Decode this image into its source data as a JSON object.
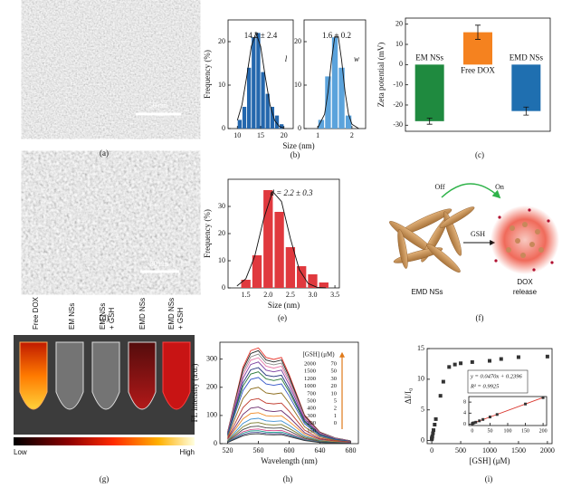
{
  "chart_data": [
    {
      "type": "histogram",
      "ylabel": "Frequency (%)",
      "xlabel": "Size (nm)",
      "color": "#2467ad",
      "bins": [
        10,
        11,
        12,
        13,
        14,
        15,
        16,
        17,
        18,
        19,
        20
      ],
      "values": [
        2,
        5,
        14,
        21,
        22,
        13,
        8,
        5,
        3,
        1
      ],
      "xlim": [
        8,
        22
      ],
      "xticks": [
        10,
        15,
        20
      ],
      "ylim": [
        0,
        25
      ],
      "yticks": [
        0,
        10,
        20
      ],
      "fit": {
        "x": [
          10,
          11,
          12,
          13,
          14,
          15,
          16,
          17,
          18,
          19,
          20
        ],
        "y": [
          1.9,
          5.5,
          11.9,
          18.9,
          22,
          18.9,
          11.9,
          5.5,
          1.9,
          0.5,
          0.1
        ]
      },
      "annotations": [
        "14.2 ± 2.4",
        "l"
      ]
    },
    {
      "type": "histogram",
      "color": "#5ba3dc",
      "bins": [
        1.0,
        1.2,
        1.4,
        1.6,
        1.8,
        2.0
      ],
      "values": [
        2,
        12,
        21,
        14,
        3
      ],
      "xlim": [
        0.6,
        2.4
      ],
      "xticks": [
        1,
        2
      ],
      "ylim": [
        0,
        25
      ],
      "yticks": [
        0,
        10,
        20
      ],
      "fit": {
        "x": [
          1.0,
          1.2,
          1.3,
          1.4,
          1.5,
          1.6,
          1.7,
          1.8,
          1.9,
          2.0,
          2.2
        ],
        "y": [
          0.2,
          3.3,
          8.4,
          15.6,
          21.2,
          21.2,
          15.6,
          8.4,
          3.3,
          1.0,
          0
        ]
      },
      "annotations": [
        "1.6 ± 0.2",
        "w"
      ]
    },
    {
      "type": "bar",
      "ylabel": "Zeta potential (mV)",
      "categories": [
        "EM NSs",
        "Free DOX",
        "EMD NSs"
      ],
      "values": [
        -28,
        16,
        -23
      ],
      "errors": [
        1.5,
        3.5,
        2
      ],
      "colors": [
        "#1f8a3f",
        "#f5821f",
        "#1f6fb0"
      ],
      "ylim": [
        -33,
        23
      ],
      "yticks": [
        -30,
        -20,
        -10,
        0,
        10,
        20
      ]
    },
    {
      "type": "histogram",
      "ylabel": "Frequency (%)",
      "xlabel": "Size (nm)",
      "color": "#e0393e",
      "bins": [
        1.375,
        1.625,
        1.875,
        2.125,
        2.375,
        2.625,
        2.875,
        3.125,
        3.375
      ],
      "values": [
        3,
        12,
        36,
        28,
        15,
        8,
        5,
        2
      ],
      "xlim": [
        1.1,
        3.6
      ],
      "xticks": [
        1.5,
        {
          "value": 2,
          "label": "2.0"
        },
        2.5,
        {
          "value": 3,
          "label": "3.0"
        },
        3.5
      ],
      "ylim": [
        0,
        40
      ],
      "yticks": [
        0,
        10,
        20,
        30
      ],
      "fit": {
        "x": [
          1.3,
          1.5,
          1.7,
          1.9,
          2.1,
          2.3,
          2.5,
          2.7,
          2.9,
          3.1,
          3.3
        ],
        "y": [
          0.7,
          3.4,
          11.7,
          25.4,
          35.5,
          31.8,
          18.2,
          6.7,
          1.6,
          0.2,
          0
        ]
      },
      "annotations": [
        "d = 2.2 ± 0.3"
      ]
    },
    {
      "type": "line",
      "xlabel": "Wavelength (nm)",
      "ylabel": "FL intensity (a.u.)",
      "legend_title": "[GSH] (μM)",
      "x": [
        520,
        540,
        550,
        560,
        570,
        580,
        590,
        600,
        620,
        640,
        660,
        680
      ],
      "xlim": [
        510,
        690
      ],
      "xticks": [
        520,
        560,
        600,
        640,
        680
      ],
      "ylim": [
        0,
        360
      ],
      "yticks": [
        0,
        100,
        200,
        300
      ],
      "series": [
        {
          "name": "2000",
          "color": "#e8342a",
          "values": [
            41,
            272,
            330,
            340,
            306,
            299,
            306,
            245,
            102,
            41,
            20,
            10
          ]
        },
        {
          "name": "1500",
          "color": "#222222",
          "values": [
            40,
            264,
            320,
            330,
            297,
            290,
            297,
            238,
            99,
            40,
            20,
            10
          ]
        },
        {
          "name": "1200",
          "color": "#8a8a8a",
          "values": [
            38,
            254,
            308,
            318,
            286,
            280,
            286,
            229,
            95,
            38,
            19,
            10
          ]
        },
        {
          "name": "1000",
          "color": "#e879a8",
          "values": [
            37,
            244,
            296,
            305,
            275,
            268,
            275,
            220,
            92,
            37,
            18,
            9
          ]
        },
        {
          "name": "700",
          "color": "#7b3fa0",
          "values": [
            35,
            232,
            281,
            290,
            261,
            255,
            261,
            209,
            87,
            35,
            17,
            9
          ]
        },
        {
          "name": "500",
          "color": "#1f2f7a",
          "values": [
            32,
            216,
            262,
            270,
            243,
            238,
            243,
            194,
            81,
            32,
            16,
            8
          ]
        },
        {
          "name": "400",
          "color": "#2b7a3a",
          "values": [
            31,
            204,
            247,
            255,
            230,
            224,
            230,
            184,
            77,
            31,
            15,
            8
          ]
        },
        {
          "name": "300",
          "color": "#3456c8",
          "values": [
            28,
            188,
            228,
            235,
            212,
            207,
            212,
            169,
            71,
            28,
            14,
            7
          ]
        },
        {
          "name": "200",
          "color": "#8b6b1a",
          "values": [
            24,
            160,
            194,
            200,
            180,
            176,
            180,
            144,
            60,
            24,
            12,
            6
          ]
        },
        {
          "name": "150",
          "color": "#c0392b",
          "values": [
            19,
            128,
            155,
            160,
            144,
            141,
            144,
            115,
            48,
            19,
            10,
            5
          ]
        },
        {
          "name": "70",
          "color": "#6b2a6b",
          "values": [
            16,
            104,
            126,
            130,
            117,
            114,
            117,
            94,
            39,
            16,
            8,
            4
          ]
        },
        {
          "name": "50",
          "color": "#f08a24",
          "values": [
            13,
            88,
            107,
            110,
            99,
            97,
            99,
            79,
            33,
            13,
            7,
            3
          ]
        },
        {
          "name": "30",
          "color": "#3d8fd1",
          "values": [
            11,
            72,
            87,
            90,
            81,
            79,
            81,
            65,
            27,
            11,
            5,
            3
          ]
        },
        {
          "name": "20",
          "color": "#7a7a2a",
          "values": [
            9,
            60,
            73,
            75,
            68,
            66,
            68,
            54,
            23,
            9,
            5,
            2
          ]
        },
        {
          "name": "10",
          "color": "#444444",
          "values": [
            7,
            50,
            60,
            62,
            56,
            55,
            56,
            45,
            19,
            7,
            4,
            2
          ]
        },
        {
          "name": "5",
          "color": "#d94a8c",
          "values": [
            6,
            42,
            50,
            52,
            47,
            46,
            47,
            37,
            16,
            6,
            3,
            2
          ]
        },
        {
          "name": "2",
          "color": "#1a9f8f",
          "values": [
            6,
            37,
            45,
            46,
            41,
            40,
            41,
            33,
            14,
            6,
            3,
            1
          ]
        },
        {
          "name": "1",
          "color": "#555599",
          "values": [
            5,
            32,
            39,
            40,
            36,
            35,
            36,
            29,
            12,
            5,
            2,
            1
          ]
        },
        {
          "name": "0",
          "color": "#333333",
          "values": [
            4,
            28,
            34,
            35,
            32,
            31,
            32,
            25,
            11,
            4,
            2,
            1
          ]
        }
      ]
    },
    {
      "type": "scatter",
      "xlabel": "[GSH] (μM)",
      "ylabel": "ΔI/I₀",
      "color": "#333333",
      "x": [
        0,
        1,
        2,
        5,
        10,
        20,
        30,
        50,
        70,
        150,
        200,
        300,
        400,
        500,
        700,
        1000,
        1200,
        1500,
        2000
      ],
      "values": [
        0.2,
        0.3,
        0.4,
        0.5,
        0.7,
        1.2,
        1.7,
        2.6,
        3.5,
        7.3,
        9.6,
        12.0,
        12.4,
        12.6,
        12.8,
        13.0,
        13.3,
        13.6,
        13.7
      ],
      "xlim": [
        -80,
        2080
      ],
      "xticks": [
        0,
        500,
        1000,
        1500,
        2000
      ],
      "ylim": [
        -0.5,
        15
      ],
      "yticks": [
        0,
        5,
        10,
        15
      ]
    },
    {
      "type": "scatter",
      "inset": true,
      "color": "#333333",
      "fit_color": "#d9342b",
      "x": [
        0,
        1,
        2,
        5,
        10,
        20,
        30,
        50,
        70,
        150,
        200
      ],
      "values": [
        0.2,
        0.3,
        0.4,
        0.5,
        0.7,
        1.2,
        1.7,
        2.6,
        3.5,
        7.3,
        9.6
      ],
      "xlim": [
        -10,
        210
      ],
      "xticks": [
        0,
        50,
        100,
        150,
        200
      ],
      "ylim": [
        -0.5,
        10
      ],
      "yticks": [
        0,
        4,
        8
      ],
      "fit": {
        "slope": 0.047,
        "intercept": 0.2396
      },
      "annotations": [
        "y = 0.0470x + 0.2396",
        "R² = 0.9925"
      ]
    }
  ],
  "panel_labels": [
    "(a)",
    "(b)",
    "(c)",
    "(d)",
    "(e)",
    "(f)",
    "(g)",
    "(h)",
    "(i)"
  ],
  "a": {
    "scale_bar": "50 nm"
  },
  "d": {
    "scale_bar": "30 nm"
  },
  "f": {
    "off": "Off",
    "on": "On",
    "trigger": "GSH",
    "material": "EMD NSs",
    "product": [
      "DOX",
      "release"
    ]
  },
  "g": {
    "tubes": [
      [
        "Free DOX"
      ],
      [
        "EM NSs"
      ],
      [
        "EM NSs",
        "+ GSH"
      ],
      [
        "EMD NSs"
      ],
      [
        "EMD NSs",
        "+ GSH"
      ]
    ],
    "colorbar": [
      "Low",
      "High"
    ]
  }
}
